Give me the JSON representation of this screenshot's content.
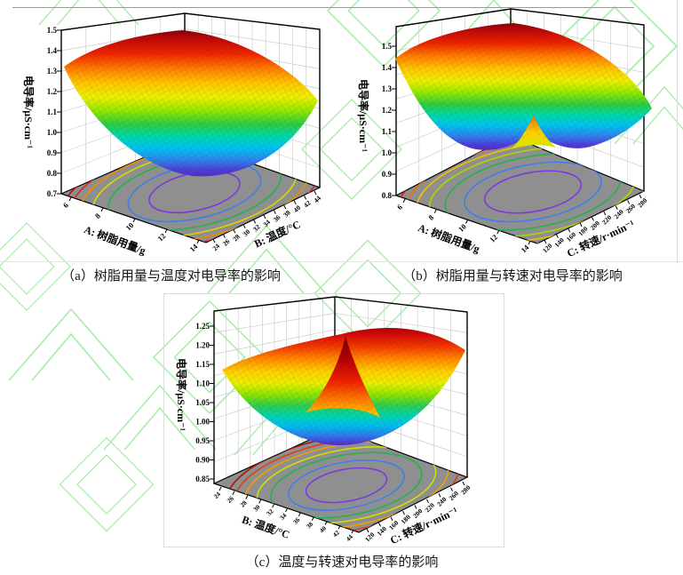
{
  "page": {
    "type": "论文插图：响应面三维曲面图（3 组）",
    "watermark_color": "#a9eda9",
    "floor_color": "#8f8f8f",
    "colormap": "rainbow (红=高, 紫=低)"
  },
  "figures": [
    {
      "key": "a",
      "caption": "（a）树脂用量与温度对电导率的影响",
      "z_axis": {
        "label": "电导率/μS·cm⁻¹",
        "ticks": [
          "0.7",
          "0.8",
          "0.9",
          "1.0",
          "1.1",
          "1.2",
          "1.3",
          "1.4",
          "1.5"
        ]
      },
      "x_axis": {
        "label": "A: 树脂用量/g",
        "ticks": [
          "6",
          "8",
          "10",
          "12",
          "14"
        ]
      },
      "y_axis": {
        "label": "B: 温度/°C",
        "ticks": [
          "24",
          "26",
          "28",
          "30",
          "32",
          "34",
          "36",
          "38",
          "40",
          "42",
          "44"
        ]
      }
    },
    {
      "key": "b",
      "caption": "（b）树脂用量与转速对电导率的影响",
      "z_axis": {
        "label": "电导率/μS·cm⁻¹",
        "ticks": [
          "0.8",
          "0.9",
          "1.0",
          "1.1",
          "1.2",
          "1.3",
          "1.4",
          "1.5"
        ]
      },
      "x_axis": {
        "label": "A: 树脂用量/g",
        "ticks": [
          "6",
          "8",
          "10",
          "12",
          "14"
        ]
      },
      "y_axis": {
        "label": "C: 转速/r·min⁻¹",
        "ticks": [
          "120",
          "140",
          "160",
          "180",
          "200",
          "220",
          "240",
          "260",
          "280"
        ]
      }
    },
    {
      "key": "c",
      "caption": "（c）温度与转速对电导率的影响",
      "z_axis": {
        "label": "电导率/μS·cm⁻¹",
        "ticks": [
          "0.85",
          "0.90",
          "0.95",
          "1.00",
          "1.05",
          "1.10",
          "1.15",
          "1.20",
          "1.25"
        ]
      },
      "x_axis": {
        "label": "B: 温度/°C",
        "ticks": [
          "24",
          "26",
          "28",
          "30",
          "32",
          "34",
          "36",
          "38",
          "40",
          "42",
          "44"
        ]
      },
      "y_axis": {
        "label": "C: 转速/r·min⁻¹",
        "ticks": [
          "120",
          "140",
          "160",
          "180",
          "200",
          "220",
          "240",
          "260",
          "280"
        ]
      }
    }
  ],
  "chart_data": [
    {
      "type": "3d-surface",
      "panel": "a",
      "title": "树脂用量与温度对电导率的影响",
      "x": {
        "label": "A: 树脂用量/g",
        "range": [
          6,
          14
        ],
        "ticks": [
          6,
          8,
          10,
          12,
          14
        ]
      },
      "y": {
        "label": "B: 温度/°C",
        "range": [
          24,
          44
        ],
        "ticks": [
          24,
          26,
          28,
          30,
          32,
          34,
          36,
          38,
          40,
          42,
          44
        ]
      },
      "z": {
        "label": "电导率/μS·cm⁻¹",
        "range": [
          0.7,
          1.5
        ],
        "tick_step": 0.1
      },
      "shape": "凹形碗状响应面，中心最低，四角升高",
      "estimated_minimum": {
        "A": 11,
        "B": 34,
        "z": 0.88
      },
      "estimated_corners": [
        {
          "A": 6,
          "B": 24,
          "z": 1.35
        },
        {
          "A": 6,
          "B": 44,
          "z": 1.5
        },
        {
          "A": 14,
          "B": 44,
          "z": 1.2
        },
        {
          "A": 14,
          "B": 24,
          "z": 1.0
        }
      ],
      "colormap": "rainbow",
      "floor_projection": "同心等高线（紫内圈→红外圈）"
    },
    {
      "type": "3d-surface",
      "panel": "b",
      "title": "树脂用量与转速对电导率的影响",
      "x": {
        "label": "A: 树脂用量/g",
        "range": [
          6,
          14
        ],
        "ticks": [
          6,
          8,
          10,
          12,
          14
        ]
      },
      "y": {
        "label": "C: 转速/r·min⁻¹",
        "range": [
          120,
          280
        ],
        "ticks": [
          120,
          140,
          160,
          180,
          200,
          220,
          240,
          260,
          280
        ]
      },
      "z": {
        "label": "电导率/μS·cm⁻¹",
        "range": [
          0.8,
          1.5
        ],
        "tick_step": 0.1
      },
      "shape": "双凹谷面，中部有一条橙黄色脊状折叠，谷底蓝紫色",
      "estimated_minimum": {
        "A": 11,
        "C": 190,
        "z": 0.95
      },
      "estimated_ridge": {
        "position": "中心",
        "z": 1.15
      },
      "estimated_corners": [
        {
          "A": 6,
          "C": 120,
          "z": 1.4
        },
        {
          "A": 6,
          "C": 280,
          "z": 1.55
        },
        {
          "A": 14,
          "C": 280,
          "z": 1.2
        },
        {
          "A": 14,
          "C": 120,
          "z": 1.1
        }
      ],
      "colormap": "rainbow",
      "floor_projection": "同心等高线（紫内圈→红外圈）"
    },
    {
      "type": "3d-surface",
      "panel": "c",
      "title": "温度与转速对电导率的影响",
      "x": {
        "label": "B: 温度/°C",
        "range": [
          24,
          44
        ],
        "ticks": [
          24,
          26,
          28,
          30,
          32,
          34,
          36,
          38,
          40,
          42,
          44
        ]
      },
      "y": {
        "label": "C: 转速/r·min⁻¹",
        "range": [
          120,
          280
        ],
        "ticks": [
          120,
          140,
          160,
          180,
          200,
          220,
          240,
          260,
          280
        ]
      },
      "z": {
        "label": "电导率/μS·cm⁻¹",
        "range": [
          0.85,
          1.25
        ],
        "tick_step": 0.05
      },
      "shape": "蝶形曲面：中央红色峰状折叠，两侧谷底蓝紫色，两端角部升高",
      "estimated_minimum": {
        "B": 33,
        "C": 190,
        "z": 0.93
      },
      "estimated_center_peak": {
        "z": 1.22
      },
      "estimated_corners": [
        {
          "B": 24,
          "C": 120,
          "z": 1.15
        },
        {
          "B": 44,
          "C": 280,
          "z": 1.2
        }
      ],
      "colormap": "rainbow",
      "floor_projection": "同心等高线（紫内圈→红外圈）"
    }
  ]
}
